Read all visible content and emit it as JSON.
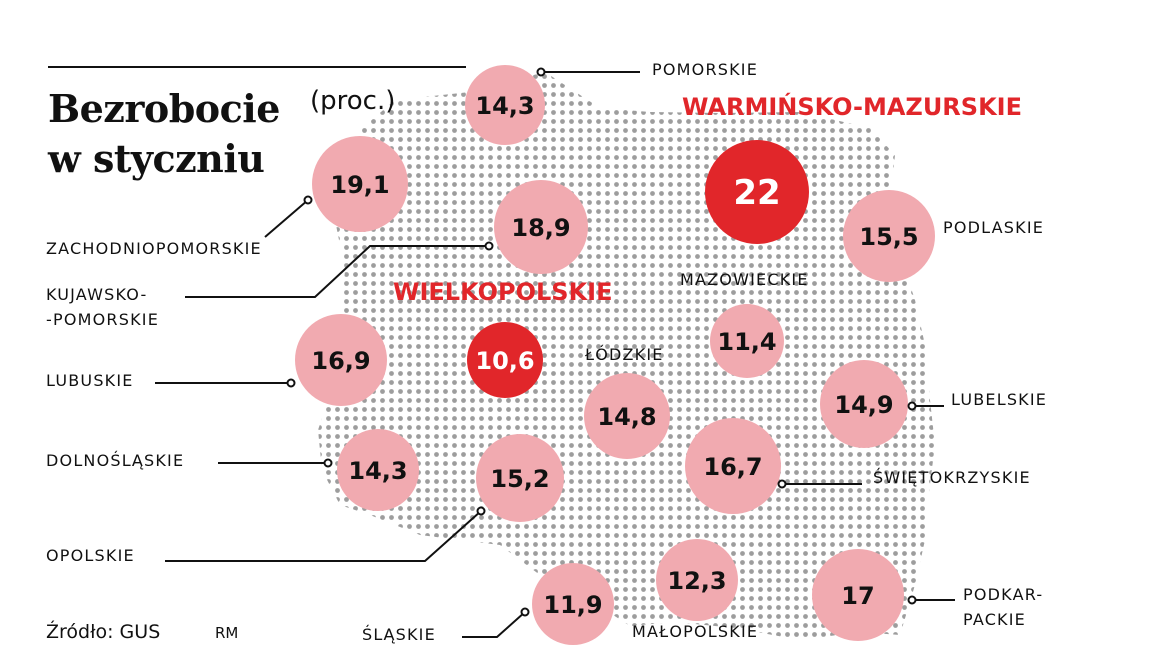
{
  "title_line1": "Bezrobocie",
  "title_line2": "w styczniu",
  "unit": "(proc.)",
  "source": "Źródło: GUS",
  "author": "RM",
  "colors": {
    "highlight": "#e1262a",
    "bubble": "#f1aab0",
    "map_dots": "#9d9d9d",
    "text": "#111111"
  },
  "regions": [
    {
      "name": "POMORSKIE",
      "value": "14,3",
      "highlight": false
    },
    {
      "name": "WARMIŃSKO-MAZURSKIE",
      "value": "22",
      "highlight": true
    },
    {
      "name": "ZACHODNIOPOMORSKIE",
      "value": "19,1",
      "highlight": false
    },
    {
      "name": "KUJAWSKO-\n-POMORSKIE",
      "value": "18,9",
      "highlight": false
    },
    {
      "name": "PODLASKIE",
      "value": "15,5",
      "highlight": false
    },
    {
      "name": "WIELKOPOLSKIE",
      "value": "10,6",
      "highlight": true
    },
    {
      "name": "MAZOWIECKIE",
      "value": "11,4",
      "highlight": false
    },
    {
      "name": "LUBUSKIE",
      "value": "16,9",
      "highlight": false
    },
    {
      "name": "ŁÓDZKIE",
      "value": "14,8",
      "highlight": false
    },
    {
      "name": "LUBELSKIE",
      "value": "14,9",
      "highlight": false
    },
    {
      "name": "DOLNOŚLĄSKIE",
      "value": "14,3",
      "highlight": false
    },
    {
      "name": "OPOLSKIE",
      "value": "15,2",
      "highlight": false
    },
    {
      "name": "ŚWIĘTOKRZYSKIE",
      "value": "16,7",
      "highlight": false
    },
    {
      "name": "ŚLĄSKIE",
      "value": "11,9",
      "highlight": false
    },
    {
      "name": "MAŁOPOLSKIE",
      "value": "12,3",
      "highlight": false
    },
    {
      "name": "PODKAR-\nPACKIE",
      "value": "17",
      "highlight": false
    }
  ]
}
